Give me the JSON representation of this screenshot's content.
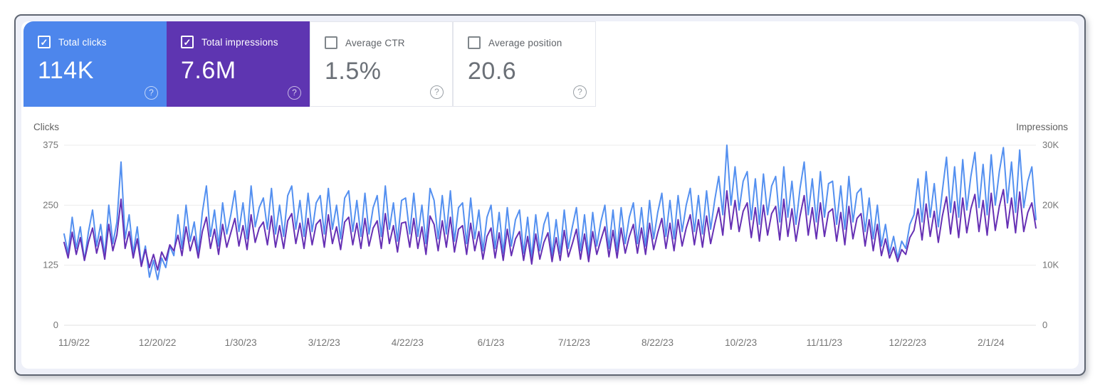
{
  "ui": {
    "help_glyph": "?"
  },
  "cards": [
    {
      "label": "Total clicks",
      "value": "114K",
      "checked": true,
      "check": "✓",
      "bg": "#4d86ec"
    },
    {
      "label": "Total impressions",
      "value": "7.6M",
      "checked": true,
      "check": "✓",
      "bg": "#5e35b1"
    },
    {
      "label": "Average CTR",
      "value": "1.5%",
      "checked": false,
      "check": "",
      "bg": "#ffffff"
    },
    {
      "label": "Average position",
      "value": "20.6",
      "checked": false,
      "check": "",
      "bg": "#ffffff"
    }
  ],
  "chart_data": {
    "type": "line",
    "x_unit": "day",
    "x_range": [
      "11/9/22",
      "3/1/24"
    ],
    "grid": true,
    "x_ticks": [
      {
        "label": "11/9/22",
        "f": 0.0
      },
      {
        "label": "12/20/22",
        "f": 0.0858
      },
      {
        "label": "1/30/23",
        "f": 0.1715
      },
      {
        "label": "3/12/23",
        "f": 0.2573
      },
      {
        "label": "4/22/23",
        "f": 0.3431
      },
      {
        "label": "6/1/23",
        "f": 0.4289
      },
      {
        "label": "7/12/23",
        "f": 0.5146
      },
      {
        "label": "8/22/23",
        "f": 0.6004
      },
      {
        "label": "10/2/23",
        "f": 0.6862
      },
      {
        "label": "11/11/23",
        "f": 0.772
      },
      {
        "label": "12/22/23",
        "f": 0.8577
      },
      {
        "label": "2/1/24",
        "f": 0.9435
      }
    ],
    "y_left": {
      "label": "Clicks",
      "ticks": [
        "0",
        "125",
        "250",
        "375"
      ],
      "max": 375
    },
    "y_right": {
      "label": "Impressions",
      "ticks": [
        "0",
        "10K",
        "20K",
        "30K"
      ],
      "max": 30
    },
    "series": [
      {
        "name": "Clicks",
        "axis": "left",
        "color": "#5490f0",
        "values": [
          190,
          150,
          225,
          160,
          205,
          135,
          195,
          240,
          165,
          210,
          145,
          250,
          170,
          215,
          340,
          180,
          230,
          150,
          205,
          125,
          165,
          100,
          135,
          95,
          140,
          120,
          165,
          145,
          230,
          160,
          250,
          175,
          215,
          150,
          235,
          290,
          185,
          240,
          165,
          255,
          190,
          230,
          280,
          195,
          255,
          180,
          290,
          205,
          245,
          265,
          200,
          285,
          190,
          250,
          185,
          270,
          290,
          200,
          260,
          185,
          275,
          195,
          255,
          270,
          190,
          285,
          200,
          250,
          180,
          265,
          280,
          195,
          260,
          185,
          275,
          190,
          245,
          270,
          185,
          290,
          200,
          255,
          175,
          260,
          265,
          190,
          275,
          185,
          250,
          170,
          285,
          260,
          180,
          270,
          190,
          280,
          175,
          245,
          255,
          170,
          265,
          180,
          240,
          155,
          225,
          250,
          160,
          235,
          150,
          245,
          165,
          220,
          240,
          150,
          225,
          140,
          230,
          155,
          210,
          235,
          145,
          220,
          150,
          240,
          160,
          205,
          245,
          155,
          230,
          145,
          235,
          165,
          215,
          250,
          160,
          240,
          155,
          245,
          170,
          225,
          255,
          170,
          245,
          165,
          260,
          180,
          235,
          275,
          185,
          260,
          180,
          270,
          195,
          250,
          285,
          195,
          270,
          190,
          280,
          200,
          260,
          310,
          230,
          375,
          250,
          330,
          240,
          300,
          320,
          220,
          305,
          210,
          315,
          230,
          290,
          310,
          215,
          330,
          225,
          300,
          210,
          285,
          340,
          230,
          305,
          215,
          320,
          225,
          295,
          300,
          210,
          290,
          200,
          310,
          215,
          275,
          285,
          195,
          265,
          180,
          250,
          165,
          210,
          150,
          185,
          140,
          175,
          160,
          210,
          230,
          305,
          215,
          320,
          225,
          295,
          205,
          280,
          350,
          235,
          330,
          225,
          345,
          240,
          310,
          360,
          245,
          335,
          230,
          355,
          250,
          320,
          370,
          255,
          340,
          235,
          365,
          245,
          300,
          330,
          220
        ]
      },
      {
        "name": "Impressions",
        "axis": "right",
        "unit": "K",
        "color": "#6630b4",
        "values": [
          13.8,
          11.2,
          15.5,
          11.8,
          14.6,
          10.8,
          13.9,
          16.2,
          12.0,
          14.8,
          11.0,
          16.8,
          12.4,
          15.1,
          21.0,
          12.8,
          15.6,
          11.2,
          14.4,
          9.8,
          12.6,
          9.6,
          11.8,
          9.2,
          12.2,
          10.8,
          13.4,
          12.4,
          15.0,
          11.6,
          16.4,
          12.4,
          14.8,
          11.2,
          15.6,
          18.0,
          12.8,
          16.0,
          11.8,
          16.8,
          13.0,
          15.4,
          17.8,
          13.2,
          16.6,
          12.6,
          18.4,
          13.8,
          16.2,
          17.2,
          13.4,
          18.2,
          13.0,
          16.6,
          12.8,
          17.4,
          18.6,
          13.6,
          17.0,
          12.8,
          17.8,
          13.4,
          16.8,
          17.6,
          13.0,
          18.4,
          13.6,
          16.4,
          12.6,
          17.2,
          18.0,
          13.4,
          17.0,
          12.8,
          17.8,
          13.2,
          16.2,
          17.4,
          12.8,
          18.6,
          13.6,
          16.6,
          12.2,
          17.0,
          17.2,
          13.0,
          17.8,
          12.8,
          16.4,
          11.8,
          18.2,
          16.8,
          12.4,
          17.4,
          13.0,
          18.0,
          12.2,
          16.0,
          16.6,
          11.8,
          17.0,
          12.4,
          15.6,
          11.0,
          14.8,
          16.2,
          11.2,
          15.4,
          10.8,
          16.0,
          11.6,
          14.4,
          15.6,
          10.8,
          14.8,
          10.2,
          15.2,
          11.0,
          13.8,
          15.4,
          10.6,
          14.6,
          10.8,
          15.8,
          11.4,
          13.6,
          16.0,
          11.0,
          15.2,
          10.6,
          15.6,
          11.8,
          14.2,
          16.4,
          11.4,
          15.8,
          11.2,
          16.2,
          12.0,
          14.8,
          16.8,
          12.0,
          16.2,
          11.8,
          17.0,
          12.6,
          15.4,
          17.8,
          12.8,
          17.0,
          12.4,
          17.6,
          13.2,
          16.2,
          18.4,
          13.4,
          17.6,
          13.0,
          18.2,
          13.6,
          16.8,
          19.6,
          15.0,
          22.4,
          16.0,
          20.8,
          15.6,
          19.0,
          20.4,
          14.6,
          19.6,
          14.0,
          20.0,
          15.0,
          18.6,
          19.8,
          14.2,
          21.0,
          14.8,
          19.4,
          14.0,
          18.2,
          21.6,
          15.0,
          19.6,
          14.4,
          20.4,
          14.8,
          18.8,
          19.4,
          14.0,
          18.8,
          13.4,
          19.8,
          14.4,
          17.8,
          18.6,
          13.2,
          17.6,
          12.4,
          16.8,
          11.6,
          14.4,
          11.2,
          13.0,
          10.6,
          12.6,
          11.8,
          14.6,
          15.8,
          19.4,
          14.2,
          20.2,
          14.8,
          19.0,
          13.8,
          18.2,
          21.4,
          15.2,
          20.6,
          14.6,
          21.2,
          15.4,
          19.4,
          21.8,
          15.6,
          20.8,
          15.0,
          22.0,
          15.8,
          19.8,
          22.6,
          16.2,
          21.2,
          15.4,
          22.2,
          15.6,
          18.8,
          20.4,
          16.2
        ]
      }
    ]
  }
}
